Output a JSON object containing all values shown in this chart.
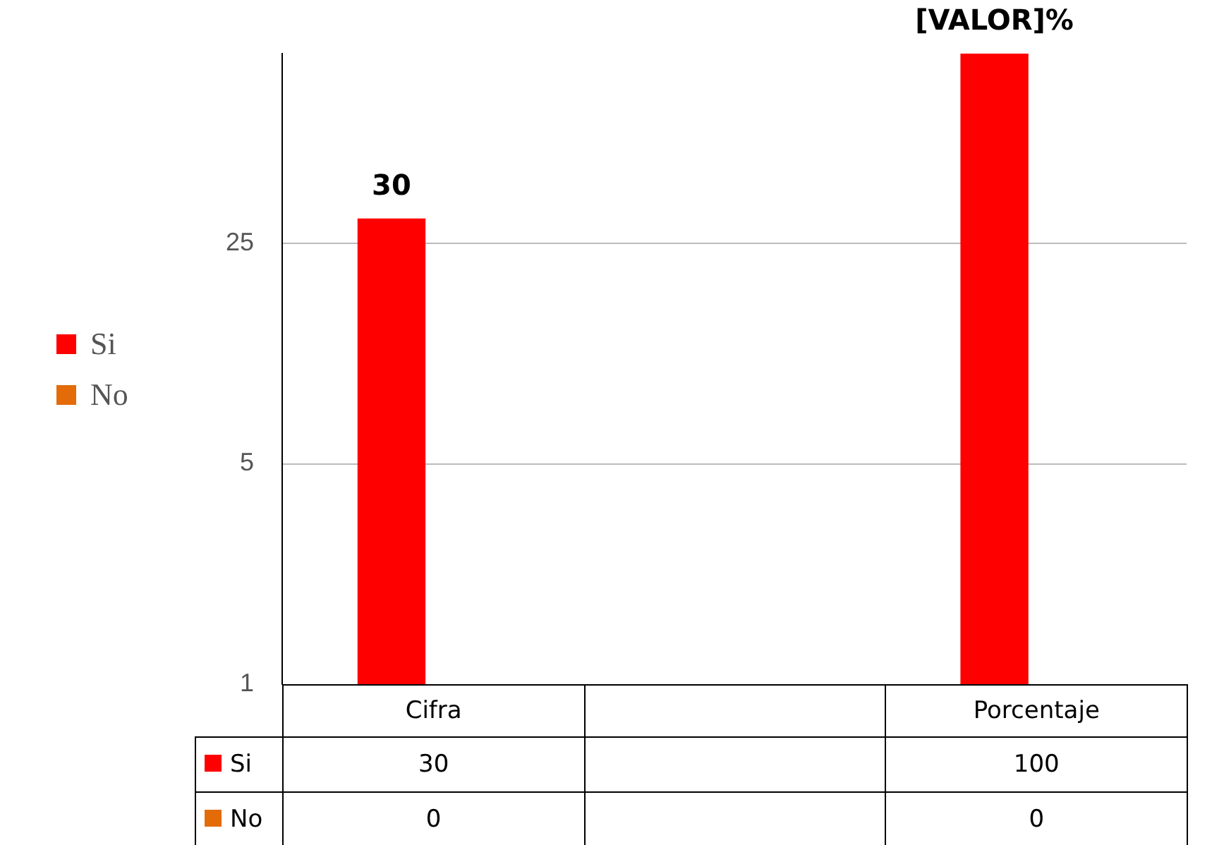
{
  "chart_data": {
    "type": "bar",
    "categories": [
      "Cifra",
      null,
      "Porcentaje"
    ],
    "series": [
      {
        "name": "Si",
        "color": "#ff0000",
        "values": [
          30,
          null,
          100
        ],
        "value_labels": [
          "30",
          null,
          "100"
        ]
      },
      {
        "name": "No",
        "color": "#e36c09",
        "values": [
          null,
          null,
          null
        ],
        "value_labels": [
          "0",
          null,
          "0"
        ]
      }
    ],
    "annotations": [
      "30",
      "[VALOR]%"
    ],
    "log": "y",
    "ylim": [
      1,
      100
    ],
    "yticks": [
      1,
      5,
      25
    ],
    "grid": "y",
    "legend": "left",
    "data_labels": true
  }
}
